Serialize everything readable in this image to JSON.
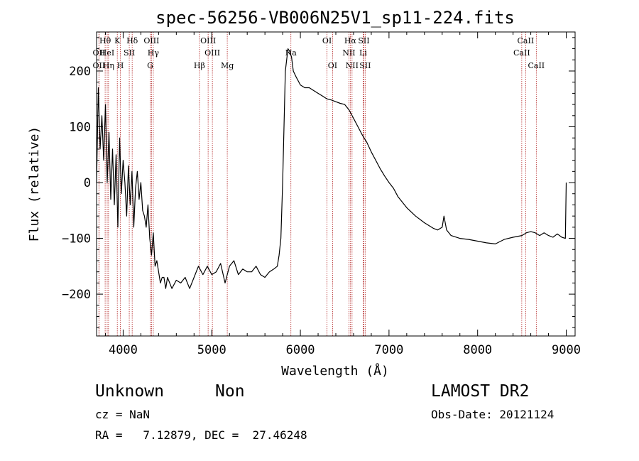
{
  "chart_data": {
    "type": "line",
    "title": "spec-56256-VB006N25V1_sp11-224.fits",
    "xlabel": "Wavelength (Å)",
    "ylabel": "Flux (relative)",
    "xlim": [
      3700,
      9100
    ],
    "ylim": [
      -275,
      270
    ],
    "xticks": [
      4000,
      5000,
      6000,
      7000,
      8000,
      9000
    ],
    "yticks": [
      -200,
      -100,
      0,
      100,
      200
    ],
    "grid": false,
    "series": [
      {
        "x": [
          3700,
          3720,
          3740,
          3760,
          3780,
          3800,
          3820,
          3840,
          3860,
          3880,
          3900,
          3920,
          3940,
          3960,
          3980,
          4000,
          4020,
          4040,
          4060,
          4080,
          4100,
          4120,
          4140,
          4160,
          4180,
          4200,
          4220,
          4240,
          4260,
          4280,
          4300,
          4320,
          4340,
          4360,
          4380,
          4400,
          4420,
          4440,
          4460,
          4480,
          4500,
          4550,
          4600,
          4650,
          4700,
          4750,
          4800,
          4850,
          4900,
          4950,
          5000,
          5050,
          5100,
          5150,
          5200,
          5250,
          5300,
          5350,
          5400,
          5450,
          5500,
          5550,
          5600,
          5650,
          5700,
          5740,
          5760,
          5780,
          5800,
          5830,
          5860,
          5880,
          5900,
          5920,
          5950,
          6000,
          6050,
          6100,
          6150,
          6200,
          6250,
          6300,
          6350,
          6400,
          6450,
          6500,
          6550,
          6600,
          6650,
          6700,
          6750,
          6800,
          6850,
          6900,
          6950,
          7000,
          7050,
          7100,
          7150,
          7200,
          7300,
          7400,
          7500,
          7550,
          7600,
          7620,
          7650,
          7700,
          7800,
          7900,
          8000,
          8100,
          8200,
          8300,
          8400,
          8500,
          8550,
          8600,
          8650,
          8700,
          8750,
          8800,
          8850,
          8900,
          8950,
          8990,
          9000
        ],
        "y": [
          0,
          170,
          60,
          120,
          40,
          140,
          0,
          90,
          -30,
          60,
          -40,
          50,
          -80,
          80,
          -20,
          40,
          0,
          -60,
          30,
          -40,
          20,
          -80,
          -10,
          20,
          -30,
          0,
          -50,
          -60,
          -80,
          -40,
          -100,
          -130,
          -90,
          -150,
          -140,
          -160,
          -180,
          -170,
          -170,
          -190,
          -170,
          -190,
          -175,
          -180,
          -170,
          -190,
          -170,
          -150,
          -165,
          -150,
          -165,
          -160,
          -145,
          -180,
          -150,
          -140,
          -165,
          -155,
          -160,
          -160,
          -150,
          -165,
          -170,
          -160,
          -155,
          -150,
          -130,
          -100,
          0,
          200,
          240,
          235,
          225,
          200,
          190,
          175,
          170,
          170,
          165,
          160,
          155,
          150,
          148,
          145,
          142,
          140,
          130,
          115,
          100,
          85,
          72,
          55,
          40,
          25,
          12,
          0,
          -10,
          -25,
          -35,
          -45,
          -60,
          -72,
          -82,
          -85,
          -80,
          -60,
          -85,
          -95,
          -100,
          -102,
          -105,
          -108,
          -110,
          -102,
          -98,
          -95,
          -90,
          -88,
          -90,
          -95,
          -90,
          -95,
          -98,
          -92,
          -98,
          -100,
          0
        ]
      }
    ],
    "line_markers": [
      {
        "label": "OII",
        "wavelength": 3727,
        "row": 2
      },
      {
        "label": "OII",
        "wavelength": 3727,
        "row": 3
      },
      {
        "label": "Hθ",
        "wavelength": 3797,
        "row": 1
      },
      {
        "label": "HeI",
        "wavelength": 3820,
        "row": 2
      },
      {
        "label": "Hη",
        "wavelength": 3835,
        "row": 3
      },
      {
        "label": "K",
        "wavelength": 3934,
        "row": 1
      },
      {
        "label": "SII",
        "wavelength": 4069,
        "row": 2
      },
      {
        "label": "H",
        "wavelength": 3969,
        "row": 3
      },
      {
        "label": "Hδ",
        "wavelength": 4102,
        "row": 1
      },
      {
        "label": "OIII",
        "wavelength": 4320,
        "row": 1
      },
      {
        "label": "Hγ",
        "wavelength": 4340,
        "row": 2
      },
      {
        "label": "G",
        "wavelength": 4305,
        "row": 3
      },
      {
        "label": "Hβ",
        "wavelength": 4861,
        "row": 3
      },
      {
        "label": "OIII",
        "wavelength": 4959,
        "row": 1
      },
      {
        "label": "OIII",
        "wavelength": 5007,
        "row": 2
      },
      {
        "label": "Mg",
        "wavelength": 5175,
        "row": 3
      },
      {
        "label": "Na",
        "wavelength": 5893,
        "row": 2
      },
      {
        "label": "OI",
        "wavelength": 6300,
        "row": 1
      },
      {
        "label": "OI",
        "wavelength": 6363,
        "row": 3
      },
      {
        "label": "Hα",
        "wavelength": 6563,
        "row": 1
      },
      {
        "label": "NII",
        "wavelength": 6548,
        "row": 2
      },
      {
        "label": "NII",
        "wavelength": 6583,
        "row": 3
      },
      {
        "label": "SII",
        "wavelength": 6716,
        "row": 1
      },
      {
        "label": "Li",
        "wavelength": 6708,
        "row": 2
      },
      {
        "label": "SII",
        "wavelength": 6731,
        "row": 3
      },
      {
        "label": "CaII",
        "wavelength": 8542,
        "row": 1
      },
      {
        "label": "CaII",
        "wavelength": 8498,
        "row": 2
      },
      {
        "label": "CaII",
        "wavelength": 8662,
        "row": 3
      }
    ]
  },
  "info": {
    "object_class": "Unknown",
    "subclass": "Non",
    "survey": "LAMOST DR2",
    "cz": "cz = NaN",
    "obs_date": "Obs-Date: 20121124",
    "coords": "RA =   7.12879, DEC =  27.46248"
  },
  "colors": {
    "spectrum": "#000000",
    "marker_line": "#b22222",
    "axis": "#000000",
    "background": "#ffffff"
  }
}
